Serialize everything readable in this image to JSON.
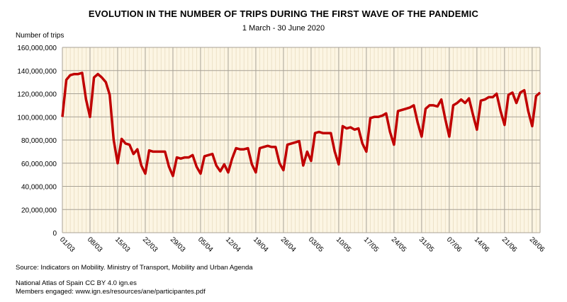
{
  "chart_data": {
    "type": "line",
    "title": "EVOLUTION IN THE NUMBER OF TRIPS DURING THE FIRST WAVE OF THE PANDEMIC",
    "subtitle": "1 March - 30 June 2020",
    "ylabel": "Number of trips",
    "xlabel": "",
    "ylim": [
      0,
      160000000
    ],
    "yticks": [
      "0",
      "20,000,000",
      "40,000,000",
      "60,000,000",
      "80,000,000",
      "100,000,000",
      "120,000,000",
      "140,000,000",
      "160,000,000"
    ],
    "xtick_labels": [
      "01/03",
      "08/03",
      "15/03",
      "22/03",
      "29/03",
      "05/04",
      "12/04",
      "19/04",
      "26/04",
      "03/05",
      "10/05",
      "17/05",
      "24/05",
      "31/05",
      "07/06",
      "14/06",
      "21/06",
      "28/06"
    ],
    "x_range": [
      "01/03",
      "30/06"
    ],
    "grid": "on",
    "background_color": "#fcf5e3",
    "line_color": "#c00000",
    "series": [
      {
        "values_millions": [
          100,
          132,
          136,
          137,
          137,
          138,
          115,
          100,
          134,
          137,
          134,
          130,
          119,
          80,
          60,
          81,
          77,
          76,
          68,
          72,
          58,
          51,
          71,
          70,
          70,
          70,
          70,
          57,
          49,
          65,
          64,
          65,
          65,
          67,
          57,
          51,
          66,
          67,
          68,
          58,
          53,
          59,
          52,
          64,
          73,
          72,
          72,
          73,
          59,
          52,
          73,
          74,
          75,
          74,
          74,
          60,
          54,
          76,
          77,
          78,
          79,
          58,
          70,
          62,
          86,
          87,
          86,
          86,
          86,
          70,
          59,
          92,
          90,
          91,
          89,
          90,
          77,
          70,
          99,
          100,
          100,
          101,
          103,
          87,
          76,
          105,
          106,
          107,
          108,
          110,
          95,
          83,
          107,
          110,
          110,
          109,
          115,
          98,
          83,
          110,
          112,
          115,
          112,
          116,
          102,
          89,
          114,
          115,
          117,
          117,
          120,
          105,
          93,
          119,
          121,
          112,
          121,
          123,
          105,
          92,
          118,
          121
        ]
      }
    ]
  },
  "footer": {
    "source": "Source: Indicators on Mobility. Ministry of Transport, Mobility and Urban Agenda",
    "atlas": "National Atlas of Spain CC BY 4.0 ign.es",
    "members": "Members engaged: www.ign.es/resources/ane/participantes.pdf"
  }
}
